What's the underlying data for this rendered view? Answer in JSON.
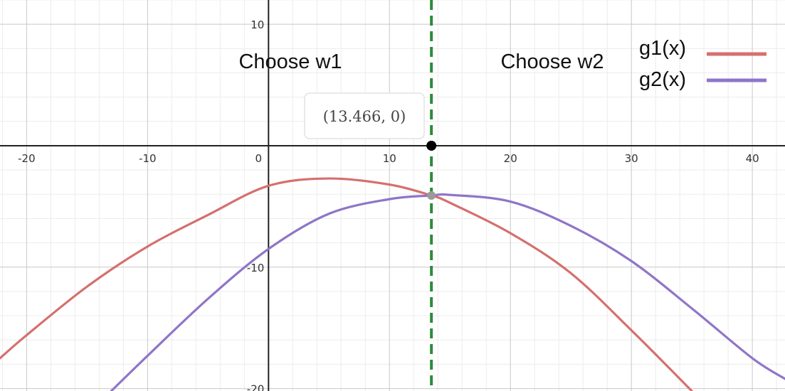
{
  "chart_data": {
    "type": "line",
    "title": "",
    "xlabel": "",
    "ylabel": "",
    "xlim": [
      -22.2,
      42.7
    ],
    "ylim": [
      -20.2,
      12
    ],
    "x_ticks": [
      -20,
      -10,
      0,
      10,
      20,
      30,
      40
    ],
    "x_tick_labels": [
      "-20",
      "-10",
      "0",
      "10",
      "20",
      "30",
      "40"
    ],
    "y_ticks": [
      10,
      -10,
      -20
    ],
    "y_tick_labels": [
      "10",
      "-10",
      "-20"
    ],
    "grid": true,
    "legend_position": "top-right",
    "series": [
      {
        "name": "g1(x)",
        "color": "#d4706e",
        "points": [
          [
            -22.2,
            -17.5
          ],
          [
            -20,
            -15.6
          ],
          [
            -15,
            -11.6
          ],
          [
            -10,
            -8.3
          ],
          [
            -5,
            -5.7
          ],
          [
            0,
            -3.3
          ],
          [
            5,
            -2.7
          ],
          [
            10,
            -3.2
          ],
          [
            13.466,
            -4.1
          ],
          [
            15,
            -4.7
          ],
          [
            20,
            -7.2
          ],
          [
            25,
            -10.5
          ],
          [
            30,
            -15.2
          ],
          [
            35,
            -20.2
          ]
        ]
      },
      {
        "name": "g2(x)",
        "color": "#8f75c8",
        "points": [
          [
            -13,
            -20.2
          ],
          [
            -10,
            -17.3
          ],
          [
            -5,
            -12.6
          ],
          [
            0,
            -8.5
          ],
          [
            5,
            -5.6
          ],
          [
            10,
            -4.4
          ],
          [
            13.466,
            -4.1
          ],
          [
            15,
            -4.05
          ],
          [
            20,
            -4.6
          ],
          [
            25,
            -6.6
          ],
          [
            30,
            -9.5
          ],
          [
            35,
            -13.4
          ],
          [
            40,
            -17.5
          ],
          [
            42.7,
            -19.2
          ]
        ]
      }
    ],
    "vline": {
      "x": 13.466,
      "color": "#2e8b3a",
      "style": "dashed"
    },
    "point_marker": {
      "x": 13.466,
      "y": 0,
      "label": "(13.466, 0)"
    },
    "intersection_marker": {
      "x": 13.466,
      "y": -4.1
    },
    "regions": [
      {
        "label": "Choose w1",
        "side": "left"
      },
      {
        "label": "Choose w2",
        "side": "right"
      }
    ]
  }
}
